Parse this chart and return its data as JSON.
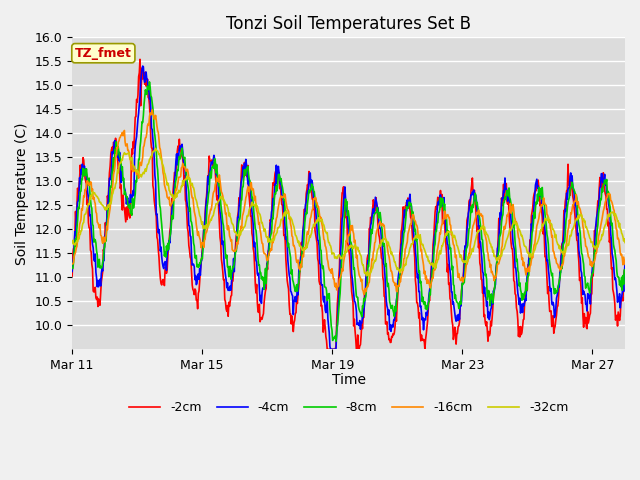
{
  "title": "Tonzi Soil Temperatures Set B",
  "xlabel": "Time",
  "ylabel": "Soil Temperature (C)",
  "ylim": [
    9.5,
    16.0
  ],
  "yticks": [
    10.0,
    10.5,
    11.0,
    11.5,
    12.0,
    12.5,
    13.0,
    13.5,
    14.0,
    14.5,
    15.0,
    15.5,
    16.0
  ],
  "fig_bg_color": "#f0f0f0",
  "plot_bg_color": "#dcdcdc",
  "grid_color": "#ffffff",
  "legend_labels": [
    "-2cm",
    "-4cm",
    "-8cm",
    "-16cm",
    "-32cm"
  ],
  "legend_colors": [
    "#ff0000",
    "#0000ff",
    "#00cc00",
    "#ff8800",
    "#cccc00"
  ],
  "annotation_text": "TZ_fmet",
  "annotation_bg": "#ffffcc",
  "annotation_border": "#999900",
  "title_fontsize": 12,
  "axis_label_fontsize": 10,
  "tick_fontsize": 9,
  "legend_fontsize": 9,
  "line_width": 1.2,
  "x_tick_labels": [
    "Mar 11",
    "Mar 15",
    "Mar 19",
    "Mar 23",
    "Mar 27"
  ],
  "x_tick_positions": [
    0,
    4,
    8,
    12,
    16
  ],
  "num_days": 17,
  "points_per_day": 48
}
